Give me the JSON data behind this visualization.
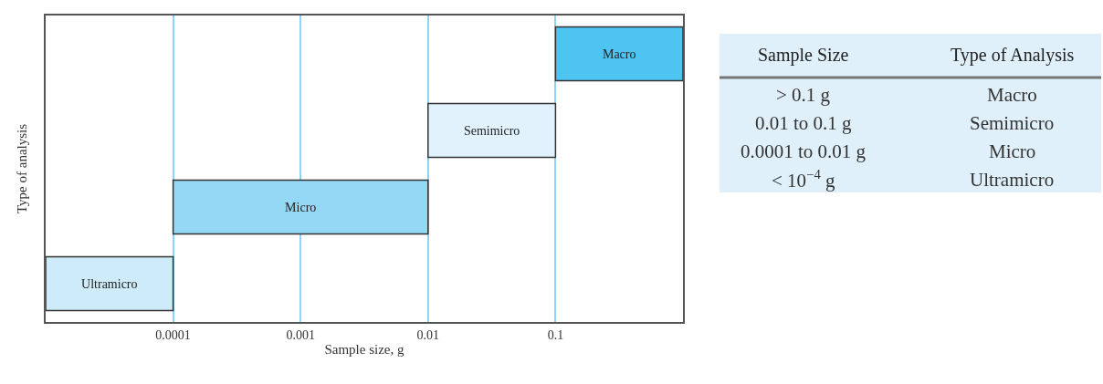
{
  "chart_data": [
    {
      "type": "bar",
      "orientation": "horizontal",
      "log": "x",
      "xlabel": "Sample size, g",
      "ylabel": "Type of analysis",
      "categories": [
        "Macro",
        "Semimicro",
        "Micro",
        "Ultramicro"
      ],
      "base": [
        0.1,
        0.01,
        0.0001,
        1e-05
      ],
      "values": [
        0.9,
        0.09,
        0.0099,
        9e-05
      ],
      "colors": [
        "#4ec5f1",
        "#e1f2fc",
        "#95d8f5",
        "#cdebf9"
      ],
      "xlim": [
        1e-05,
        1
      ],
      "xticks": [
        0.0001,
        0.001,
        0.01,
        0.1
      ],
      "grid": "x",
      "tick_labels": "x"
    },
    {
      "type": "other",
      "annotations": [
        "Sample Size",
        "Type of Analysis",
        "> 0.1 g",
        "Macro",
        "0.01 to 0.1 g",
        "Semimicro",
        "0.0001 to 0.01 g",
        "Micro",
        "< 10$^{−4}$ g",
        "Ultramicro"
      ]
    }
  ]
}
